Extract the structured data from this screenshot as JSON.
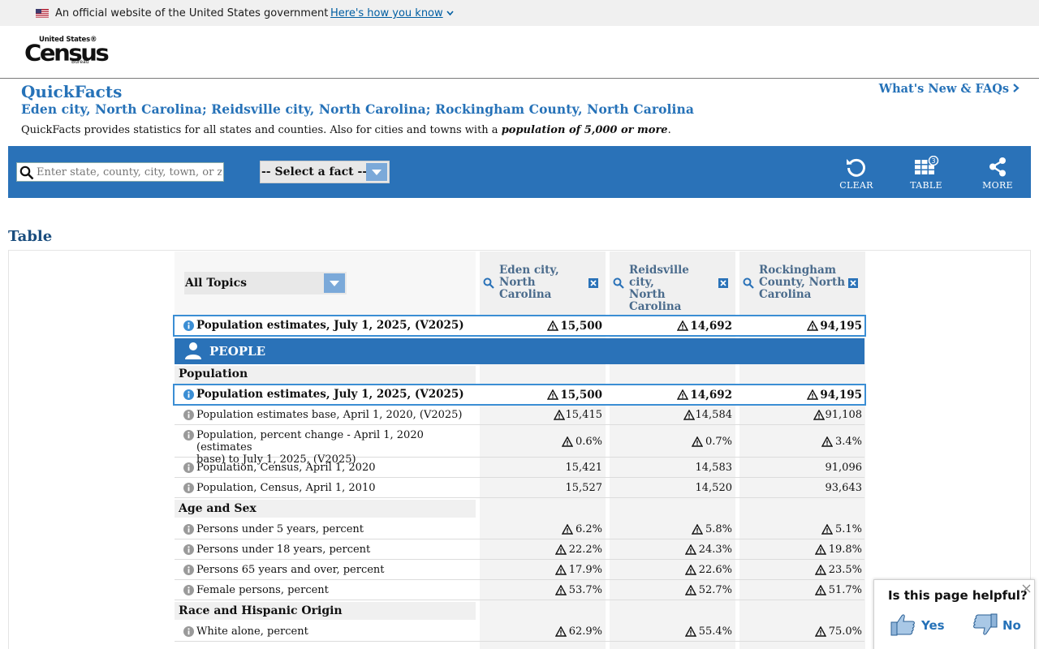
{
  "gov_banner": {
    "official_text": "An official website of the United States government",
    "how_you_know": "Here's how you know"
  },
  "logo": {
    "top_text": "United States®",
    "main_text": "Census",
    "bottom_text": "Bureau"
  },
  "title": "QuickFacts",
  "subtitle": "Eden city, North Carolina; Reidsville city, North Carolina; Rockingham County, North Carolina",
  "whats_new": "What's New & FAQs",
  "description_prefix": "QuickFacts provides statistics for all states and counties. Also for cities and towns with a ",
  "description_emphasis": "population of 5,000 or more",
  "description_suffix": ".",
  "toolbar": {
    "search_placeholder": "Enter state, county, city, town, or zip code",
    "fact_select": "-- Select a fact --",
    "clear_label": "CLEAR",
    "table_label": "TABLE",
    "table_badge": "3",
    "more_label": "MORE"
  },
  "table_heading": "Table",
  "topics_select": "All Topics",
  "columns": [
    {
      "line1": "Eden city,",
      "line2": "North",
      "line3": "Carolina"
    },
    {
      "line1": "Reidsville city,",
      "line2": "North",
      "line3": "Carolina"
    },
    {
      "line1": "Rockingham",
      "line2": "County, North",
      "line3": "Carolina"
    }
  ],
  "top_row": {
    "label": "Population estimates, July 1, 2025, (V2025)",
    "values": [
      "15,500",
      "14,692",
      "94,195"
    ]
  },
  "people_band": "PEOPLE",
  "sections": {
    "population": "Population",
    "age_sex": "Age and Sex",
    "race": "Race and Hispanic Origin"
  },
  "rows": [
    {
      "label": "Population estimates, July 1, 2025, (V2025)",
      "values": [
        "15,500",
        "14,692",
        "94,195"
      ]
    },
    {
      "label": "Population estimates base, April 1, 2020, (V2025)",
      "values": [
        "15,415",
        "14,584",
        "91,108"
      ]
    },
    {
      "label": "Population, percent change - April 1, 2020 (estimates",
      "label2": "base) to July 1, 2025, (V2025)",
      "values": [
        "0.6%",
        "0.7%",
        "3.4%"
      ]
    },
    {
      "label": "Population, Census, April 1, 2020",
      "values": [
        "15,421",
        "14,583",
        "91,096"
      ]
    },
    {
      "label": "Population, Census, April 1, 2010",
      "values": [
        "15,527",
        "14,520",
        "93,643"
      ]
    },
    {
      "label": "Persons under 5 years, percent",
      "values": [
        "6.2%",
        "5.8%",
        "5.1%"
      ]
    },
    {
      "label": "Persons under 18 years, percent",
      "values": [
        "22.2%",
        "24.3%",
        "19.8%"
      ]
    },
    {
      "label": "Persons 65 years and over, percent",
      "values": [
        "17.9%",
        "22.6%",
        "23.5%"
      ]
    },
    {
      "label": "Female persons, percent",
      "values": [
        "53.7%",
        "52.7%",
        "51.7%"
      ]
    },
    {
      "label": "White alone, percent",
      "values": [
        "62.9%",
        "55.4%",
        "75.0%"
      ]
    }
  ],
  "feedback": {
    "question": "Is this page helpful?",
    "yes": "Yes",
    "no": "No"
  },
  "colors": {
    "brand_blue": "#2a72b8",
    "title_blue": "#2672b8",
    "highlight": "#3b8ed4"
  }
}
